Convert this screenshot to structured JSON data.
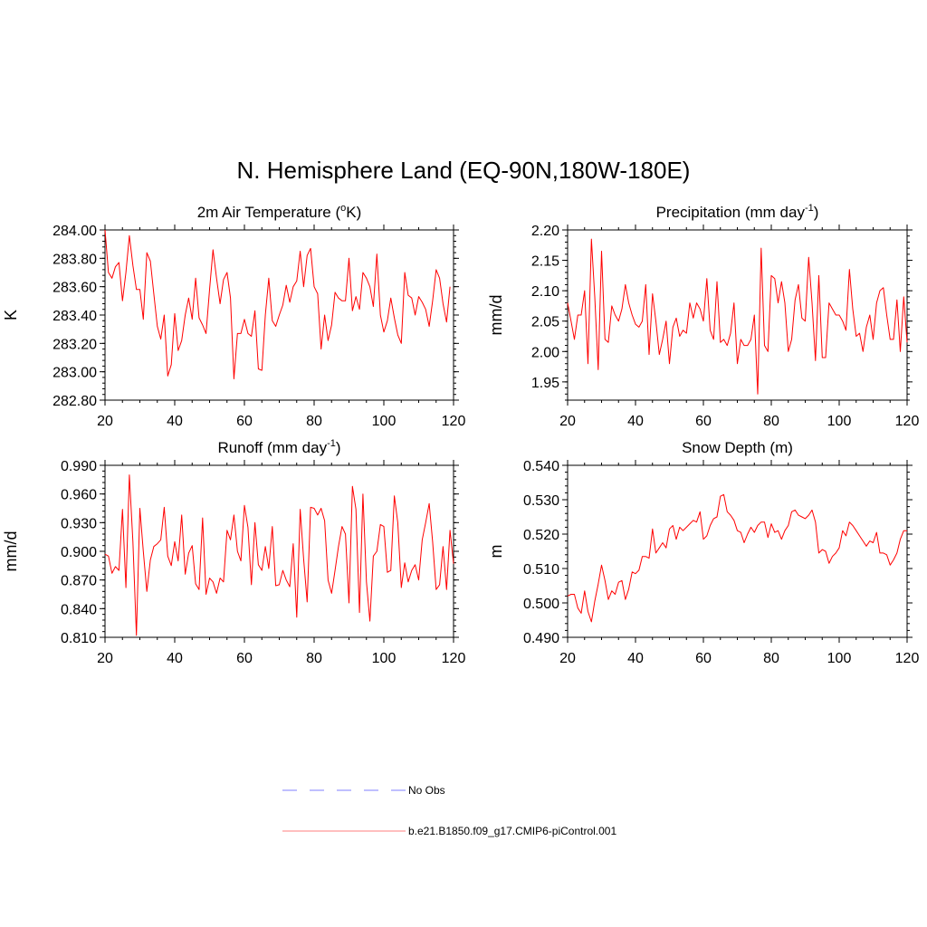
{
  "main_title": "N. Hemisphere Land (EQ-90N,180W-180E)",
  "colors": {
    "model": "#ff0000",
    "obs": "#9999ff",
    "axis": "#000000"
  },
  "legend": {
    "obs_label": "No Obs",
    "model_label": "b.e21.B1850.f09_g17.CMIP6-piControl.001"
  },
  "chart_data": [
    {
      "type": "line",
      "title": "2m Air Temperature (",
      "title_sup": "o",
      "title_end": "K)",
      "ylabel": "K",
      "xlim": [
        20,
        120
      ],
      "ylim": [
        282.8,
        284.0
      ],
      "xticks": [
        "20",
        "40",
        "60",
        "80",
        "100",
        "120"
      ],
      "yticks": [
        "282.80",
        "283.00",
        "283.20",
        "283.40",
        "283.60",
        "283.80",
        "284.00"
      ],
      "ytick_values": [
        282.8,
        283.0,
        283.2,
        283.4,
        283.6,
        283.8,
        284.0
      ],
      "x_start": 20,
      "values": [
        284.0,
        283.7,
        283.66,
        283.74,
        283.77,
        283.5,
        283.7,
        283.96,
        283.75,
        283.58,
        283.58,
        283.37,
        283.84,
        283.78,
        283.55,
        283.32,
        283.23,
        283.4,
        282.97,
        283.05,
        283.41,
        283.15,
        283.22,
        283.4,
        283.52,
        283.37,
        283.66,
        283.38,
        283.33,
        283.27,
        283.58,
        283.86,
        283.66,
        283.48,
        283.65,
        283.7,
        283.52,
        282.95,
        283.27,
        283.27,
        283.37,
        283.27,
        283.25,
        283.43,
        283.02,
        283.01,
        283.4,
        283.66,
        283.36,
        283.32,
        283.4,
        283.47,
        283.61,
        283.49,
        283.6,
        283.64,
        283.85,
        283.6,
        283.82,
        283.87,
        283.6,
        283.55,
        283.16,
        283.4,
        283.22,
        283.33,
        283.56,
        283.52,
        283.5,
        283.5,
        283.8,
        283.43,
        283.53,
        283.44,
        283.7,
        283.66,
        283.6,
        283.46,
        283.83,
        283.4,
        283.28,
        283.36,
        283.52,
        283.38,
        283.26,
        283.2,
        283.7,
        283.54,
        283.52,
        283.4,
        283.53,
        283.49,
        283.44,
        283.32,
        283.5,
        283.72,
        283.66,
        283.48,
        283.35,
        283.6
      ]
    },
    {
      "type": "line",
      "title": "Precipitation (mm day",
      "title_sup": "-1",
      "title_end": ")",
      "ylabel": "mm/d",
      "xlim": [
        20,
        120
      ],
      "ylim": [
        1.92,
        2.2
      ],
      "xticks": [
        "20",
        "40",
        "60",
        "80",
        "100",
        "120"
      ],
      "yticks": [
        "1.95",
        "2.00",
        "2.05",
        "2.10",
        "2.15",
        "2.20"
      ],
      "ytick_values": [
        1.95,
        2.0,
        2.05,
        2.1,
        2.15,
        2.2
      ],
      "x_start": 20,
      "values": [
        2.08,
        2.05,
        2.02,
        2.06,
        2.06,
        2.1,
        1.98,
        2.185,
        2.09,
        1.97,
        2.165,
        2.02,
        2.015,
        2.075,
        2.06,
        2.05,
        2.07,
        2.11,
        2.08,
        2.06,
        2.045,
        2.04,
        2.05,
        2.11,
        1.995,
        2.095,
        2.05,
        1.995,
        2.02,
        2.05,
        1.98,
        2.04,
        2.055,
        2.025,
        2.035,
        2.03,
        2.08,
        2.055,
        2.08,
        2.07,
        2.05,
        2.12,
        2.035,
        2.02,
        2.115,
        2.015,
        2.02,
        2.01,
        2.03,
        2.08,
        1.98,
        2.02,
        2.01,
        2.01,
        2.02,
        2.06,
        1.93,
        2.17,
        2.01,
        2.0,
        2.125,
        2.12,
        2.08,
        2.115,
        2.08,
        2.0,
        2.02,
        2.085,
        2.11,
        2.055,
        2.05,
        2.155,
        2.08,
        1.985,
        2.125,
        1.99,
        1.99,
        2.08,
        2.07,
        2.06,
        2.06,
        2.05,
        2.035,
        2.135,
        2.07,
        2.025,
        2.03,
        2.0,
        2.04,
        2.06,
        2.02,
        2.08,
        2.1,
        2.105,
        2.06,
        2.02,
        2.02,
        2.085,
        2.0,
        2.09,
        2.015
      ]
    },
    {
      "type": "line",
      "title": "Runoff (mm day",
      "title_sup": "-1",
      "title_end": ")",
      "ylabel": "mm/d",
      "xlim": [
        20,
        120
      ],
      "ylim": [
        0.81,
        0.99
      ],
      "xticks": [
        "20",
        "40",
        "60",
        "80",
        "100",
        "120"
      ],
      "yticks": [
        "0.810",
        "0.840",
        "0.870",
        "0.900",
        "0.930",
        "0.960",
        "0.990"
      ],
      "ytick_values": [
        0.81,
        0.84,
        0.87,
        0.9,
        0.93,
        0.96,
        0.99
      ],
      "x_start": 20,
      "values": [
        0.897,
        0.895,
        0.877,
        0.884,
        0.88,
        0.944,
        0.862,
        0.98,
        0.91,
        0.812,
        0.945,
        0.9,
        0.858,
        0.891,
        0.905,
        0.908,
        0.912,
        0.946,
        0.895,
        0.885,
        0.91,
        0.89,
        0.938,
        0.876,
        0.898,
        0.906,
        0.866,
        0.86,
        0.935,
        0.855,
        0.872,
        0.868,
        0.856,
        0.872,
        0.868,
        0.922,
        0.912,
        0.938,
        0.9,
        0.89,
        0.948,
        0.925,
        0.865,
        0.93,
        0.886,
        0.88,
        0.905,
        0.882,
        0.926,
        0.864,
        0.865,
        0.88,
        0.87,
        0.863,
        0.908,
        0.831,
        0.944,
        0.892,
        0.847,
        0.946,
        0.945,
        0.938,
        0.945,
        0.932,
        0.87,
        0.856,
        0.88,
        0.905,
        0.926,
        0.918,
        0.846,
        0.968,
        0.944,
        0.836,
        0.96,
        0.868,
        0.827,
        0.895,
        0.9,
        0.928,
        0.926,
        0.878,
        0.88,
        0.958,
        0.93,
        0.862,
        0.888,
        0.868,
        0.88,
        0.886,
        0.87,
        0.912,
        0.93,
        0.95,
        0.91,
        0.86,
        0.865,
        0.905,
        0.86,
        0.922,
        0.887
      ]
    },
    {
      "type": "line",
      "title": "Snow Depth (m)",
      "title_sup": "",
      "title_end": "",
      "ylabel": "m",
      "xlim": [
        20,
        120
      ],
      "ylim": [
        0.49,
        0.54
      ],
      "xticks": [
        "20",
        "40",
        "60",
        "80",
        "100",
        "120"
      ],
      "yticks": [
        "0.490",
        "0.500",
        "0.510",
        "0.520",
        "0.530",
        "0.540"
      ],
      "ytick_values": [
        0.49,
        0.5,
        0.51,
        0.52,
        0.53,
        0.54
      ],
      "x_start": 20,
      "values": [
        0.502,
        0.5025,
        0.5025,
        0.4985,
        0.497,
        0.5035,
        0.4975,
        0.4945,
        0.5005,
        0.5055,
        0.511,
        0.5065,
        0.501,
        0.5035,
        0.5025,
        0.506,
        0.5065,
        0.501,
        0.504,
        0.509,
        0.5085,
        0.5095,
        0.5135,
        0.5135,
        0.513,
        0.5215,
        0.5145,
        0.516,
        0.5175,
        0.516,
        0.5215,
        0.5225,
        0.5185,
        0.522,
        0.521,
        0.522,
        0.523,
        0.524,
        0.5235,
        0.5265,
        0.5185,
        0.5195,
        0.5225,
        0.5245,
        0.525,
        0.531,
        0.5315,
        0.5265,
        0.5255,
        0.524,
        0.521,
        0.5205,
        0.5175,
        0.52,
        0.522,
        0.5205,
        0.5225,
        0.5235,
        0.5235,
        0.519,
        0.523,
        0.5205,
        0.521,
        0.5185,
        0.521,
        0.5225,
        0.5265,
        0.527,
        0.5255,
        0.525,
        0.5245,
        0.5255,
        0.527,
        0.5235,
        0.5145,
        0.5155,
        0.515,
        0.5115,
        0.5135,
        0.5145,
        0.516,
        0.521,
        0.5195,
        0.5235,
        0.5225,
        0.521,
        0.5195,
        0.518,
        0.5165,
        0.518,
        0.5175,
        0.5205,
        0.5145,
        0.5145,
        0.514,
        0.511,
        0.5125,
        0.5145,
        0.5185,
        0.521,
        0.521
      ]
    }
  ]
}
